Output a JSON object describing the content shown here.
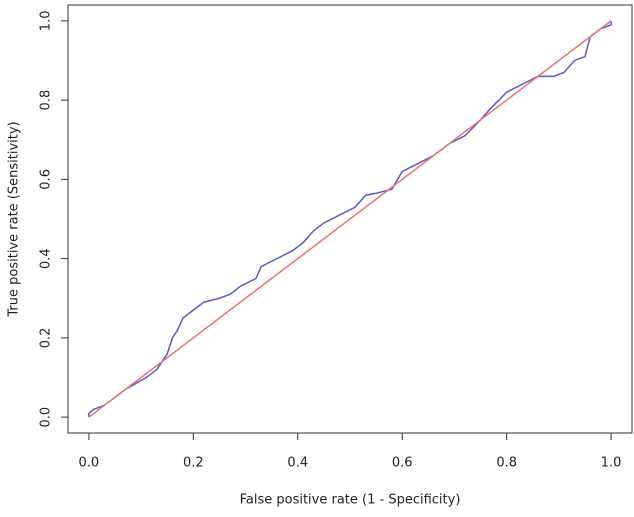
{
  "chart_data": {
    "type": "line",
    "x_label": "False positive rate (1 - Specificity)",
    "y_label": "True positive rate (Sensitivity)",
    "xlim": [
      -0.04,
      1.04
    ],
    "ylim": [
      -0.04,
      1.04
    ],
    "xticks": [
      {
        "value": 0,
        "label": "0.0"
      },
      0.2,
      0.4,
      0.6,
      0.8,
      {
        "value": 1,
        "label": "1.0"
      }
    ],
    "yticks": [
      {
        "value": 0,
        "label": "0.0"
      },
      0.2,
      0.4,
      0.6,
      0.8,
      {
        "value": 1,
        "label": "1.0"
      }
    ],
    "series": [
      {
        "color": "#5a5ad0",
        "x": [
          0,
          0,
          0.01,
          0.02,
          0.03,
          0.05,
          0.07,
          0.09,
          0.11,
          0.13,
          0.14,
          0.15,
          0.16,
          0.17,
          0.18,
          0.2,
          0.22,
          0.25,
          0.27,
          0.29,
          0.32,
          0.33,
          0.36,
          0.39,
          0.41,
          0.43,
          0.45,
          0.48,
          0.51,
          0.53,
          0.55,
          0.58,
          0.6,
          0.63,
          0.66,
          0.69,
          0.72,
          0.75,
          0.77,
          0.8,
          0.83,
          0.86,
          0.89,
          0.91,
          0.93,
          0.95,
          0.96,
          0.98,
          1,
          1
        ],
        "values": [
          0,
          0.01,
          0.02,
          0.025,
          0.03,
          0.05,
          0.07,
          0.085,
          0.1,
          0.12,
          0.14,
          0.16,
          0.2,
          0.22,
          0.25,
          0.27,
          0.29,
          0.3,
          0.31,
          0.33,
          0.35,
          0.38,
          0.4,
          0.42,
          0.44,
          0.47,
          0.49,
          0.51,
          0.53,
          0.56,
          0.565,
          0.575,
          0.62,
          0.64,
          0.66,
          0.69,
          0.71,
          0.75,
          0.78,
          0.82,
          0.84,
          0.86,
          0.86,
          0.87,
          0.9,
          0.91,
          0.96,
          0.98,
          0.99,
          1
        ]
      },
      {
        "color": "#f07070",
        "x": [
          0,
          1
        ],
        "values": [
          0,
          1
        ]
      }
    ]
  }
}
